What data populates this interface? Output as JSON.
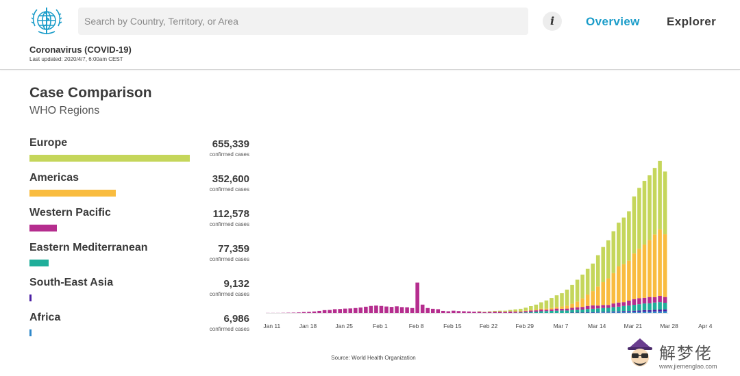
{
  "header": {
    "logo_icon": "who-logo-icon",
    "search_placeholder": "Search by Country, Territory, or Area",
    "info_label": "i",
    "nav": [
      {
        "label": "Overview",
        "active": true,
        "color": "#1a9cc9"
      },
      {
        "label": "Explorer",
        "active": false,
        "color": "#3a3a3a"
      }
    ],
    "app_title": "Coronavirus (COVID-19)",
    "last_updated": "Last updated: 2020/4/7, 6:00am CEST"
  },
  "section": {
    "title": "Case Comparison",
    "subtitle": "WHO Regions"
  },
  "regions": [
    {
      "name": "Europe",
      "count": "655,339",
      "unit": "confirmed cases",
      "value": 655339,
      "color": "#c5d65b"
    },
    {
      "name": "Americas",
      "count": "352,600",
      "unit": "confirmed cases",
      "value": 352600,
      "color": "#f9bc3f"
    },
    {
      "name": "Western Pacific",
      "count": "112,578",
      "unit": "confirmed cases",
      "value": 112578,
      "color": "#b52d8e"
    },
    {
      "name": "Eastern Mediterranean",
      "count": "77,359",
      "unit": "confirmed cases",
      "value": 77359,
      "color": "#1fae9a"
    },
    {
      "name": "South-East Asia",
      "count": "9,132",
      "unit": "confirmed cases",
      "value": 9132,
      "color": "#4b1fa3"
    },
    {
      "name": "Africa",
      "count": "6,986",
      "unit": "confirmed cases",
      "value": 6986,
      "color": "#2f88c9"
    }
  ],
  "chart_data": {
    "type": "bar",
    "stacked": true,
    "title": "",
    "xlabel": "",
    "ylabel": "",
    "grid": false,
    "legend": "none",
    "tick_labels": [
      "Jan 11",
      "Jan 18",
      "Jan 25",
      "Feb 1",
      "Feb 8",
      "Feb 15",
      "Feb 22",
      "Feb 29",
      "Mar 7",
      "Mar 14",
      "Mar 21",
      "Mar 28",
      "Apr 4"
    ],
    "x_start": "2020-01-11",
    "ylim": [
      0,
      85000
    ],
    "series_order": [
      "Africa",
      "South-East Asia",
      "Eastern Mediterranean",
      "Western Pacific",
      "Americas",
      "Europe"
    ],
    "series": [
      {
        "name": "Western Pacific",
        "color": "#b52d8e",
        "values": [
          50,
          50,
          50,
          100,
          150,
          200,
          300,
          500,
          600,
          800,
          1100,
          1500,
          1600,
          2000,
          2100,
          2300,
          2400,
          2600,
          2900,
          3300,
          3700,
          3900,
          3700,
          3400,
          3200,
          3500,
          3100,
          3000,
          2600,
          16000,
          4400,
          2600,
          2200,
          2000,
          1100,
          900,
          1200,
          1000,
          900,
          800,
          700,
          800,
          500,
          600,
          700,
          700,
          600,
          800,
          700,
          600,
          700,
          800,
          700,
          900,
          700,
          800,
          1100,
          900,
          1000,
          1100,
          1300,
          1400,
          1600,
          1800,
          1500,
          1600,
          1500,
          1900,
          2200,
          2000,
          2600,
          3000,
          3200,
          3000,
          3300,
          2800,
          3300,
          3000
        ]
      },
      {
        "name": "Eastern Mediterranean",
        "color": "#1fae9a",
        "values": [
          0,
          0,
          0,
          0,
          0,
          0,
          0,
          0,
          0,
          0,
          0,
          0,
          0,
          0,
          0,
          0,
          0,
          0,
          0,
          0,
          0,
          0,
          0,
          0,
          0,
          0,
          0,
          0,
          0,
          0,
          0,
          0,
          0,
          0,
          0,
          0,
          0,
          0,
          0,
          0,
          0,
          0,
          0,
          0,
          0,
          0,
          0,
          0,
          100,
          200,
          300,
          500,
          700,
          900,
          1000,
          1100,
          1200,
          1300,
          1300,
          1400,
          1500,
          1600,
          1700,
          1800,
          1900,
          2000,
          2100,
          2300,
          2500,
          2700,
          2900,
          3100,
          3300,
          3500,
          3600,
          3800,
          3900,
          3500
        ]
      },
      {
        "name": "South-East Asia",
        "color": "#4b1fa3",
        "values": [
          0,
          0,
          0,
          0,
          0,
          0,
          0,
          0,
          0,
          0,
          0,
          0,
          0,
          0,
          0,
          0,
          0,
          0,
          0,
          0,
          0,
          0,
          0,
          0,
          0,
          0,
          0,
          0,
          0,
          0,
          0,
          0,
          0,
          0,
          0,
          0,
          0,
          0,
          0,
          0,
          0,
          0,
          0,
          0,
          0,
          0,
          0,
          0,
          0,
          0,
          0,
          0,
          0,
          0,
          0,
          0,
          0,
          0,
          0,
          100,
          100,
          100,
          200,
          200,
          200,
          300,
          300,
          400,
          400,
          500,
          500,
          600,
          700,
          800,
          800,
          900,
          1000,
          1000
        ]
      },
      {
        "name": "Africa",
        "color": "#2f88c9",
        "values": [
          0,
          0,
          0,
          0,
          0,
          0,
          0,
          0,
          0,
          0,
          0,
          0,
          0,
          0,
          0,
          0,
          0,
          0,
          0,
          0,
          0,
          0,
          0,
          0,
          0,
          0,
          0,
          0,
          0,
          0,
          0,
          0,
          0,
          0,
          0,
          0,
          0,
          0,
          0,
          0,
          0,
          0,
          0,
          0,
          0,
          0,
          0,
          0,
          0,
          0,
          0,
          0,
          0,
          0,
          0,
          0,
          0,
          0,
          0,
          100,
          100,
          100,
          200,
          200,
          300,
          300,
          300,
          400,
          400,
          500,
          500,
          600,
          600,
          700,
          700,
          800,
          800,
          900
        ]
      },
      {
        "name": "Americas",
        "color": "#f9bc3f",
        "values": [
          0,
          0,
          0,
          0,
          0,
          0,
          0,
          0,
          0,
          0,
          0,
          0,
          0,
          0,
          0,
          0,
          0,
          0,
          0,
          0,
          0,
          0,
          0,
          0,
          0,
          0,
          0,
          0,
          0,
          0,
          0,
          0,
          0,
          0,
          0,
          0,
          0,
          0,
          0,
          0,
          0,
          0,
          0,
          0,
          0,
          0,
          0,
          0,
          100,
          100,
          200,
          300,
          400,
          500,
          600,
          700,
          900,
          1200,
          1600,
          2100,
          3000,
          4500,
          6000,
          7500,
          10000,
          12000,
          14000,
          16000,
          19000,
          20000,
          21000,
          24000,
          26000,
          28000,
          30000,
          33000,
          35000,
          33000
        ]
      },
      {
        "name": "Europe",
        "color": "#c5d65b",
        "values": [
          0,
          0,
          0,
          0,
          0,
          0,
          0,
          0,
          0,
          0,
          0,
          0,
          0,
          0,
          0,
          0,
          0,
          0,
          0,
          0,
          0,
          0,
          0,
          0,
          0,
          0,
          0,
          0,
          0,
          0,
          0,
          0,
          0,
          0,
          0,
          0,
          0,
          0,
          0,
          0,
          0,
          100,
          200,
          300,
          400,
          500,
          600,
          800,
          1000,
          1300,
          1600,
          2000,
          2600,
          3300,
          4300,
          5300,
          6100,
          7000,
          8400,
          10000,
          11500,
          12500,
          13500,
          14500,
          16500,
          18500,
          20000,
          22000,
          23000,
          24500,
          26000,
          30000,
          32000,
          33500,
          34000,
          35000,
          36000,
          33000
        ]
      }
    ]
  },
  "source": "Source:  World Health Organization",
  "watermark": {
    "icon": "fortune-teller-face-icon",
    "text": "解梦佬",
    "url": "www.jiemenglao.com"
  }
}
